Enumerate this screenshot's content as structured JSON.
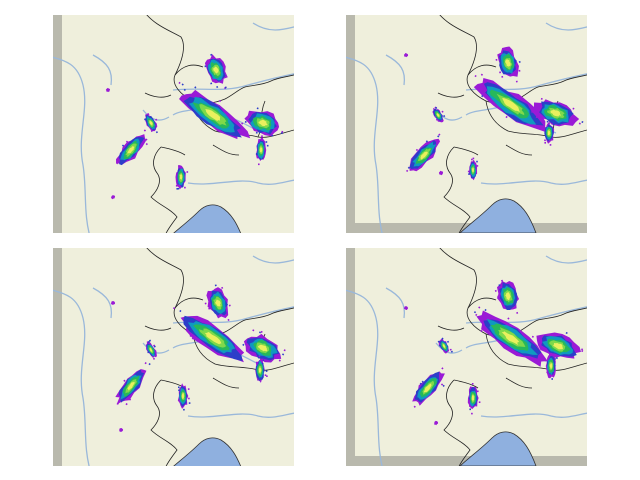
{
  "figure": {
    "layout": "2x2",
    "panel_count": 4
  },
  "map_style": {
    "land_color": "#efefdc",
    "ocean_color": "#b9b9ad",
    "lake_color": "#8fb0df",
    "river_color": "#9ab8da",
    "border_color": "#222222"
  },
  "precip_colormap": [
    "#9a1ad6",
    "#2c3ec9",
    "#0f9abf",
    "#27b85a",
    "#7fd94a",
    "#eaf05e"
  ],
  "panels": [
    {
      "id": "panel-0",
      "position": "top-left"
    },
    {
      "id": "panel-1",
      "position": "top-right"
    },
    {
      "id": "panel-2",
      "position": "bottom-left"
    },
    {
      "id": "panel-3",
      "position": "bottom-right"
    }
  ]
}
